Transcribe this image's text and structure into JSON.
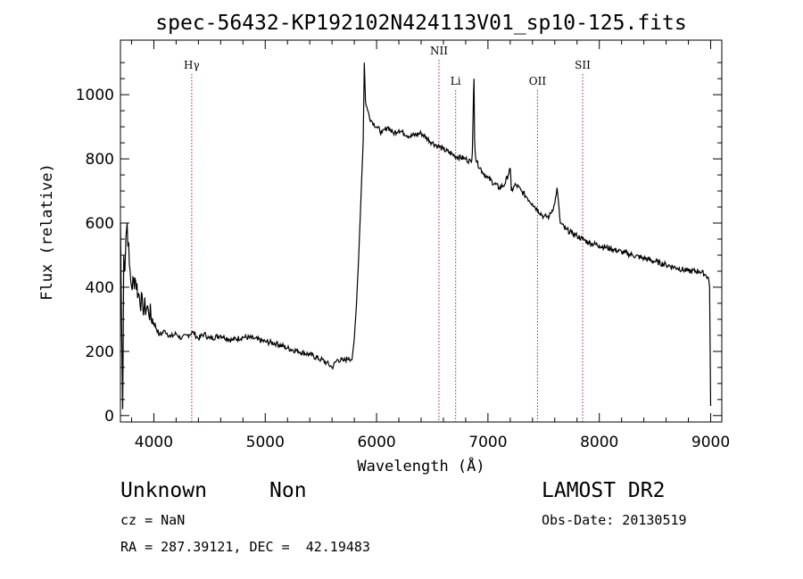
{
  "chart_data": {
    "type": "line",
    "title": "spec-56432-KP192102N424113V01_sp10-125.fits",
    "xlabel": "Wavelength (Å)",
    "ylabel": "Flux (relative)",
    "xlim": [
      3700,
      9100
    ],
    "ylim": [
      -20,
      1170
    ],
    "xticks": [
      4000,
      5000,
      6000,
      7000,
      8000,
      9000
    ],
    "yticks": [
      0,
      200,
      400,
      600,
      800,
      1000
    ],
    "grid": false,
    "series": [
      {
        "x": [
          3700,
          3710,
          3720,
          3730,
          3740,
          3750,
          3760,
          3780,
          3800,
          3830,
          3860,
          3900,
          3950,
          4000,
          4050,
          4100,
          4150,
          4200,
          4250,
          4300,
          4350,
          4400,
          4450,
          4500,
          4600,
          4700,
          4800,
          4900,
          5000,
          5100,
          5200,
          5300,
          5400,
          5500,
          5550,
          5600,
          5650,
          5700,
          5750,
          5780,
          5800,
          5820,
          5840,
          5860,
          5880,
          5890,
          5900,
          5920,
          5950,
          6000,
          6050,
          6100,
          6150,
          6200,
          6300,
          6400,
          6500,
          6550,
          6600,
          6700,
          6800,
          6850,
          6860,
          6870,
          6875,
          6880,
          6890,
          6900,
          6950,
          7000,
          7100,
          7150,
          7200,
          7210,
          7250,
          7300,
          7350,
          7400,
          7450,
          7500,
          7550,
          7600,
          7620,
          7650,
          7700,
          7750,
          7800,
          7850,
          7900,
          8000,
          8100,
          8200,
          8300,
          8400,
          8500,
          8600,
          8700,
          8800,
          8900,
          8950,
          8980,
          8990,
          9000
        ],
        "y": [
          600,
          300,
          20,
          500,
          450,
          560,
          600,
          470,
          400,
          430,
          380,
          340,
          330,
          290,
          250,
          265,
          245,
          255,
          240,
          250,
          260,
          240,
          255,
          240,
          250,
          235,
          245,
          240,
          230,
          225,
          210,
          200,
          190,
          175,
          165,
          150,
          175,
          170,
          180,
          175,
          240,
          350,
          500,
          680,
          860,
          1100,
          980,
          950,
          920,
          900,
          880,
          900,
          880,
          890,
          870,
          880,
          850,
          840,
          830,
          810,
          800,
          790,
          820,
          1000,
          1050,
          860,
          800,
          790,
          760,
          740,
          710,
          720,
          770,
          700,
          720,
          700,
          680,
          660,
          640,
          620,
          620,
          660,
          710,
          600,
          580,
          570,
          560,
          550,
          540,
          530,
          520,
          510,
          500,
          490,
          480,
          470,
          460,
          450,
          450,
          440,
          430,
          400,
          30
        ]
      }
    ],
    "annotations": [
      {
        "label": "Hγ",
        "x": 4340
      },
      {
        "label": "NII",
        "x": 6560
      },
      {
        "label": "Li",
        "x": 6710
      },
      {
        "label": "OII",
        "x": 7445
      },
      {
        "label": "SII",
        "x": 7850
      }
    ]
  },
  "info": {
    "object_class": "Unknown",
    "subclass": "Non",
    "survey": "LAMOST DR2",
    "redshift": "cz = NaN",
    "obs_date": "Obs-Date: 20130519",
    "coords": "RA = 287.39121, DEC =  42.19483"
  }
}
